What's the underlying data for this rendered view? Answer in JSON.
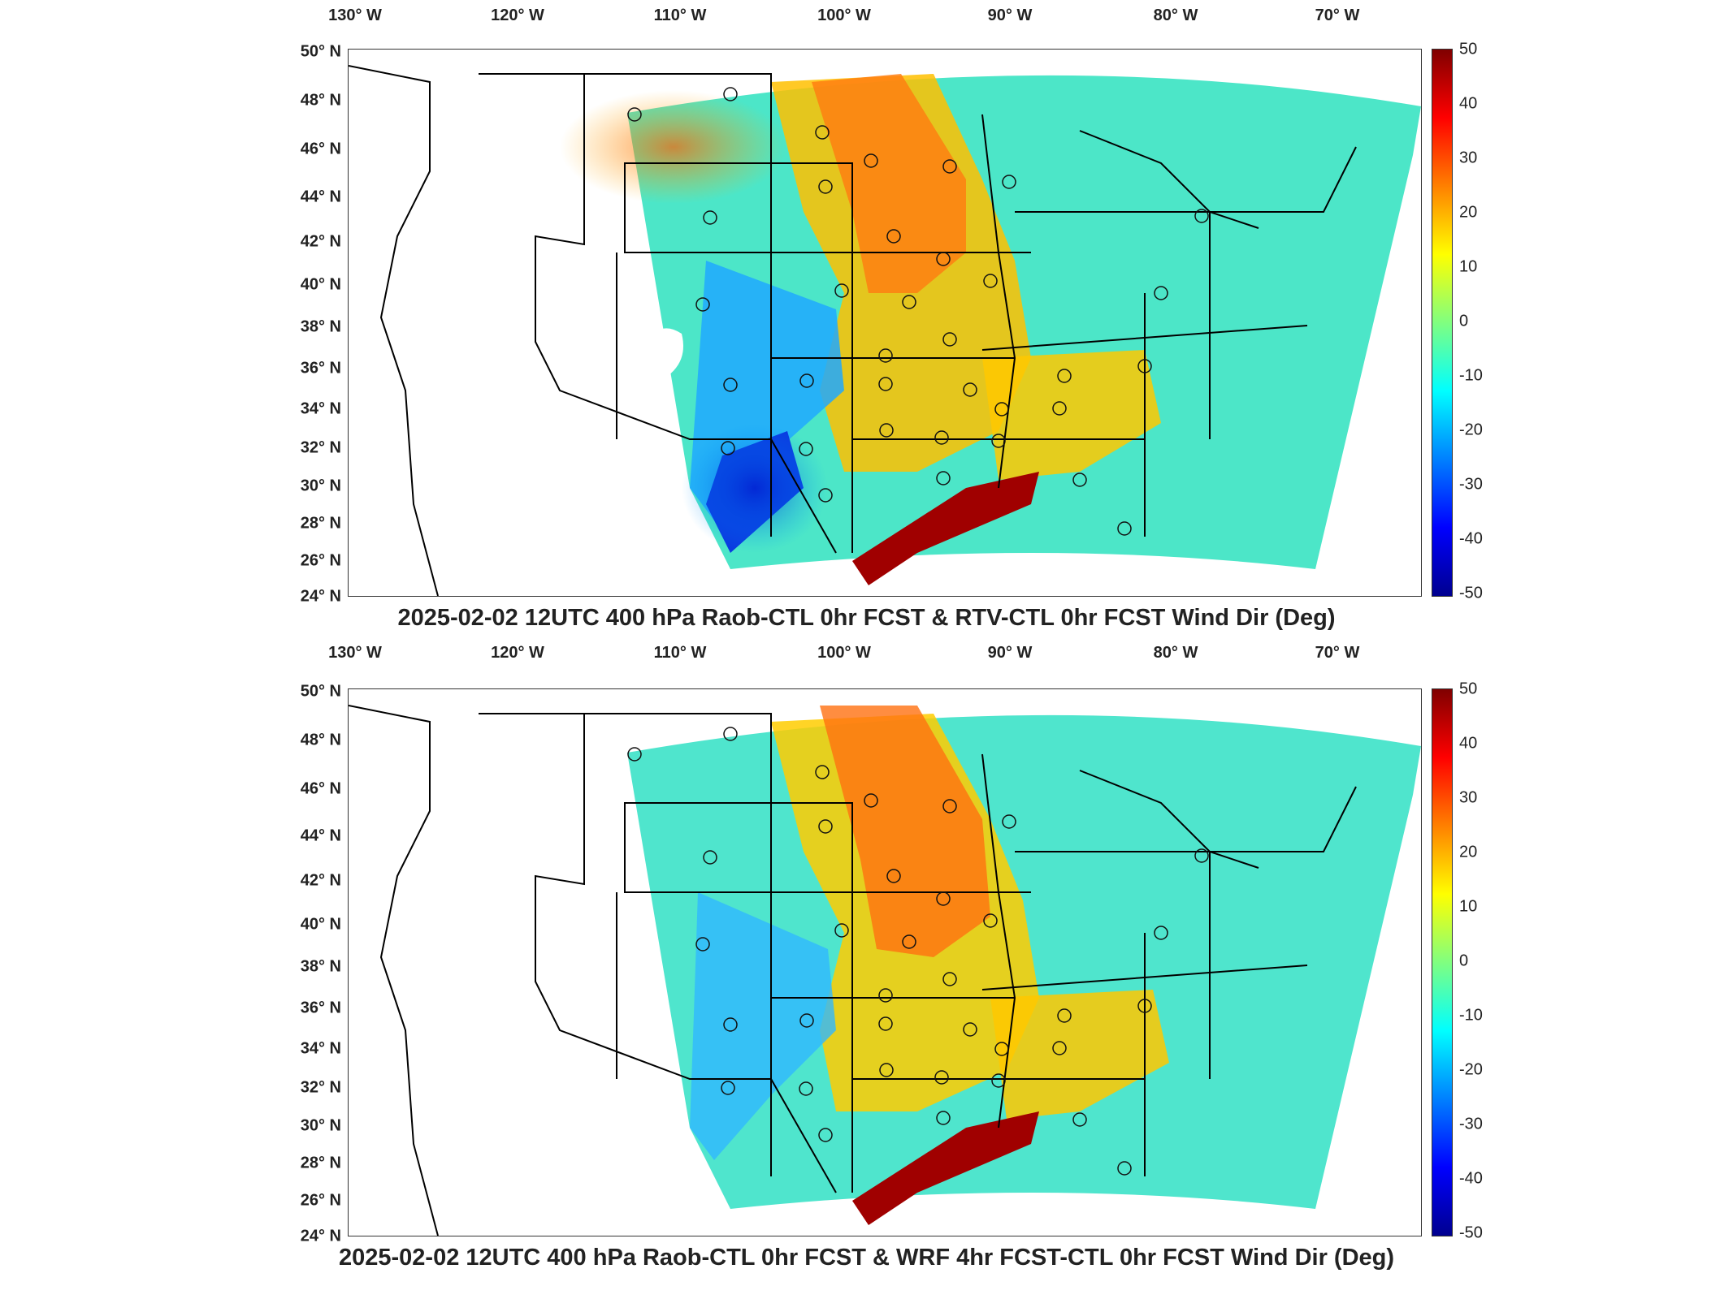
{
  "colors": {
    "colormap": [
      "#00008f",
      "#0000ff",
      "#0080ff",
      "#00ffff",
      "#80ff80",
      "#ffff00",
      "#ff8000",
      "#ff0000",
      "#800000"
    ]
  },
  "longitude_labels": [
    "130° W",
    "120° W",
    "110° W",
    "100° W",
    "90° W",
    "80° W",
    "70° W"
  ],
  "latitude_labels": [
    "50° N",
    "48° N",
    "46° N",
    "44° N",
    "42° N",
    "40° N",
    "38° N",
    "36° N",
    "34° N",
    "32° N",
    "30° N",
    "28° N",
    "26° N",
    "24° N"
  ],
  "colorbar_ticks": [
    "50",
    "40",
    "30",
    "20",
    "10",
    "0",
    "-10",
    "-20",
    "-30",
    "-40",
    "-50"
  ],
  "panels": [
    {
      "title": "2025-02-02 12UTC 400 hPa Raob-CTL 0hr FCST & RTV-CTL 0hr FCST Wind Dir (Deg)"
    },
    {
      "title": "2025-02-02 12UTC 400 hPa Raob-CTL 0hr FCST & WRF 4hr FCST-CTL 0hr FCST Wind Dir (Deg)"
    }
  ]
}
